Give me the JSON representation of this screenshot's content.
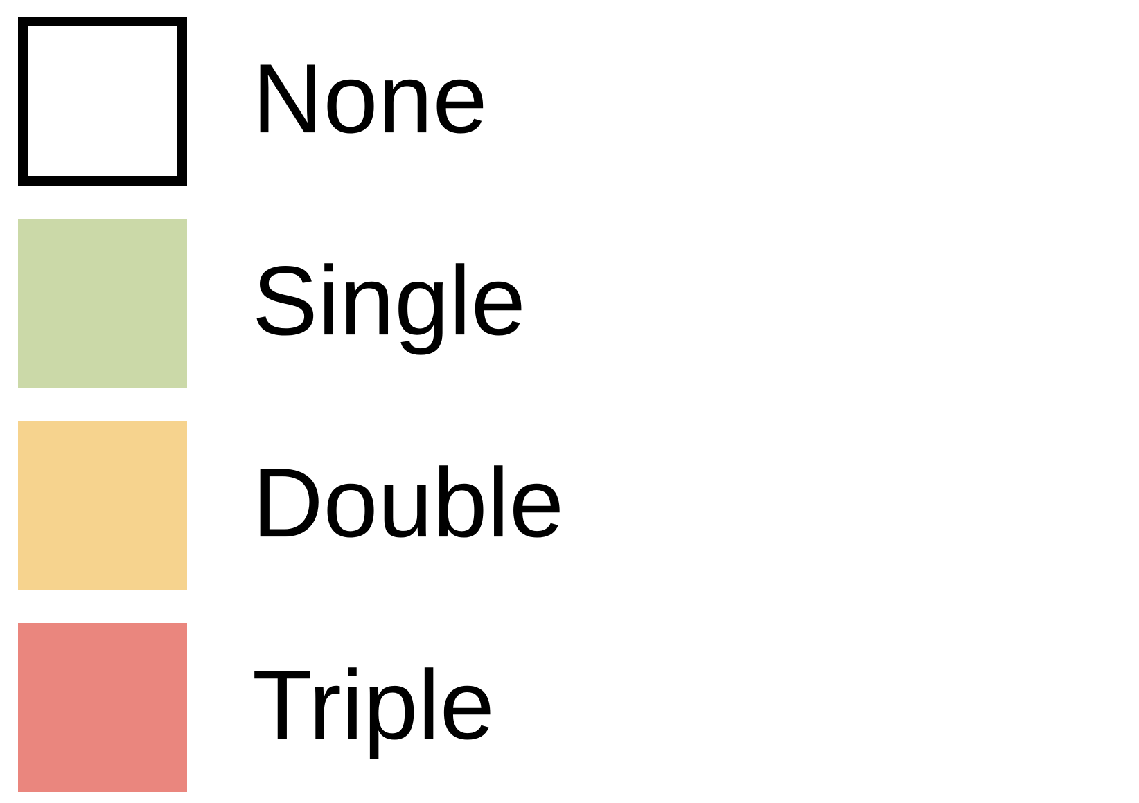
{
  "legend": {
    "items": [
      {
        "label": "None",
        "color": "#ffffff",
        "outline": "#000000"
      },
      {
        "label": "Single",
        "color": "#cbd9a8"
      },
      {
        "label": "Double",
        "color": "#f6d38e"
      },
      {
        "label": "Triple",
        "color": "#ea867e"
      }
    ]
  }
}
